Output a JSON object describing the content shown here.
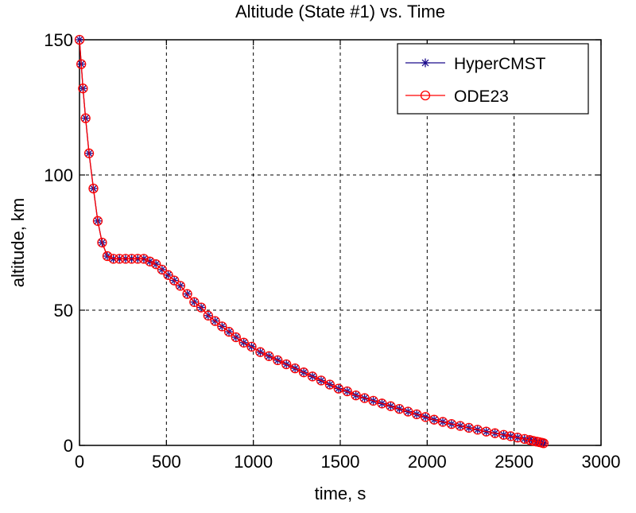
{
  "chart_data": {
    "type": "line",
    "title": "Altitude (State #1) vs. Time",
    "xlabel": "time, s",
    "ylabel": "altitude, km",
    "xlim": [
      0,
      3000
    ],
    "ylim": [
      0,
      150
    ],
    "xticks": [
      0,
      500,
      1000,
      1500,
      2000,
      2500,
      3000
    ],
    "yticks": [
      0,
      50,
      100,
      150
    ],
    "grid": true,
    "legend_position": "top-right",
    "series": [
      {
        "name": "HyperCMST",
        "color": "#1a0a8c",
        "marker": "asterisk",
        "x": [
          0,
          10,
          20,
          35,
          55,
          80,
          105,
          130,
          160,
          195,
          230,
          265,
          300,
          335,
          370,
          405,
          440,
          475,
          510,
          545,
          580,
          620,
          660,
          700,
          740,
          780,
          820,
          860,
          900,
          945,
          990,
          1040,
          1090,
          1140,
          1190,
          1240,
          1290,
          1340,
          1390,
          1440,
          1490,
          1540,
          1590,
          1640,
          1690,
          1740,
          1790,
          1840,
          1890,
          1940,
          1990,
          2040,
          2090,
          2140,
          2190,
          2240,
          2290,
          2340,
          2390,
          2440,
          2480,
          2520,
          2560,
          2590,
          2610,
          2630,
          2645,
          2660,
          2670
        ],
        "y": [
          150,
          141,
          132,
          121,
          108,
          95,
          83,
          75,
          70,
          69,
          69,
          69,
          69,
          69,
          69,
          68,
          67,
          65,
          63,
          61,
          59,
          56,
          53,
          51,
          48,
          46,
          44,
          42,
          40,
          38,
          36.5,
          34.5,
          33,
          31.5,
          30,
          28.5,
          27,
          25.5,
          24,
          22.5,
          21,
          20,
          18.5,
          17.5,
          16.5,
          15.5,
          14.5,
          13.5,
          12.5,
          11.5,
          10.5,
          9.5,
          8.7,
          7.9,
          7.2,
          6.5,
          5.8,
          5.1,
          4.5,
          3.9,
          3.4,
          2.9,
          2.4,
          2.0,
          1.7,
          1.4,
          1.2,
          1.0,
          0.8
        ]
      },
      {
        "name": "ODE23",
        "color": "#ff0000",
        "marker": "circle",
        "x": [
          0,
          10,
          20,
          35,
          55,
          80,
          105,
          130,
          160,
          195,
          230,
          265,
          300,
          335,
          370,
          405,
          440,
          475,
          510,
          545,
          580,
          620,
          660,
          700,
          740,
          780,
          820,
          860,
          900,
          945,
          990,
          1040,
          1090,
          1140,
          1190,
          1240,
          1290,
          1340,
          1390,
          1440,
          1490,
          1540,
          1590,
          1640,
          1690,
          1740,
          1790,
          1840,
          1890,
          1940,
          1990,
          2040,
          2090,
          2140,
          2190,
          2240,
          2290,
          2340,
          2390,
          2440,
          2480,
          2520,
          2560,
          2590,
          2610,
          2630,
          2645,
          2660,
          2670
        ],
        "y": [
          150,
          141,
          132,
          121,
          108,
          95,
          83,
          75,
          70,
          69,
          69,
          69,
          69,
          69,
          69,
          68,
          67,
          65,
          63,
          61,
          59,
          56,
          53,
          51,
          48,
          46,
          44,
          42,
          40,
          38,
          36.5,
          34.5,
          33,
          31.5,
          30,
          28.5,
          27,
          25.5,
          24,
          22.5,
          21,
          20,
          18.5,
          17.5,
          16.5,
          15.5,
          14.5,
          13.5,
          12.5,
          11.5,
          10.5,
          9.5,
          8.7,
          7.9,
          7.2,
          6.5,
          5.8,
          5.1,
          4.5,
          3.9,
          3.4,
          2.9,
          2.4,
          2.0,
          1.7,
          1.4,
          1.2,
          1.0,
          0.8
        ]
      }
    ]
  }
}
